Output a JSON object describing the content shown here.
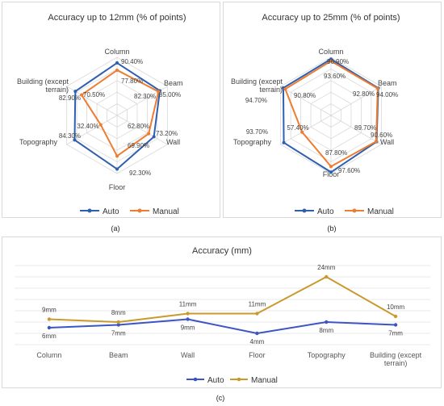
{
  "chart_data": [
    {
      "type": "radar",
      "title": "Accuracy up to 12mm (% of points)",
      "categories": [
        "Column",
        "Beam",
        "Wall",
        "Floor",
        "Topography",
        "Building (except terrain)"
      ],
      "category_labels": [
        "Column",
        "Beam",
        "Wall",
        "Floor",
        "Topography",
        [
          "Building (except",
          "terrain)"
        ]
      ],
      "series": [
        {
          "name": "Auto",
          "values": [
            90.4,
            85.0,
            73.2,
            92.3,
            84.3,
            82.9
          ],
          "labels": [
            "90.40%",
            "85.00%",
            "73.20%",
            "92.30%",
            "84.30%",
            "82.90%"
          ],
          "color": "#2e5fb0"
        },
        {
          "name": "Manual",
          "values": [
            77.8,
            82.3,
            62.8,
            69.9,
            32.4,
            70.5
          ],
          "labels": [
            "77.80%",
            "82.30%",
            "62.80%",
            "69.90%",
            "32.40%",
            "70.50%"
          ],
          "color": "#ed7d31"
        }
      ],
      "rmax": 100,
      "legend_position": "bottom",
      "caption": "(a)"
    },
    {
      "type": "radar",
      "title": "Accuracy up to 25mm (% of points)",
      "categories": [
        "Column",
        "Beam",
        "Wall",
        "Floor",
        "Topography",
        "Building (except terrain)"
      ],
      "category_labels": [
        "Column",
        "Beam",
        "Wall",
        "Floor",
        "Topography",
        [
          "Building (except",
          "terrain)"
        ]
      ],
      "series": [
        {
          "name": "Auto",
          "values": [
            96.9,
            94.0,
            90.6,
            97.6,
            93.7,
            94.7
          ],
          "labels": [
            "96.90%",
            "94.00%",
            "90.60%",
            "97.60%",
            "93.70%",
            "94.70%"
          ],
          "color": "#2e5fb0"
        },
        {
          "name": "Manual",
          "values": [
            93.6,
            92.8,
            89.7,
            87.8,
            57.4,
            90.8
          ],
          "labels": [
            "93.60%",
            "92.80%",
            "89.70%",
            "87.80%",
            "57.40%",
            "90.80%"
          ],
          "color": "#ed7d31"
        }
      ],
      "rmax": 100,
      "legend_position": "bottom",
      "caption": "(b)"
    },
    {
      "type": "line",
      "title": "Accuracy (mm)",
      "categories": [
        "Column",
        "Beam",
        "Wall",
        "Floor",
        "Topography",
        "Building (except terrain)"
      ],
      "category_labels": [
        [
          "Column"
        ],
        [
          "Beam"
        ],
        [
          "Wall"
        ],
        [
          "Floor"
        ],
        [
          "Topography"
        ],
        [
          "Building (except",
          "terrain)"
        ]
      ],
      "series": [
        {
          "name": "Auto",
          "values": [
            6,
            7,
            9,
            4,
            8,
            7
          ],
          "labels": [
            "6mm",
            "7mm",
            "9mm",
            "4mm",
            "8mm",
            "7mm"
          ],
          "color": "#3c54c4"
        },
        {
          "name": "Manual",
          "values": [
            9,
            8,
            11,
            11,
            24,
            10
          ],
          "labels": [
            "9mm",
            "8mm",
            "11mm",
            "11mm",
            "24mm",
            "10mm"
          ],
          "color": "#c99a2e"
        }
      ],
      "ylim": [
        0,
        28
      ],
      "grid": true,
      "legend_position": "bottom",
      "caption": "(c)"
    }
  ]
}
